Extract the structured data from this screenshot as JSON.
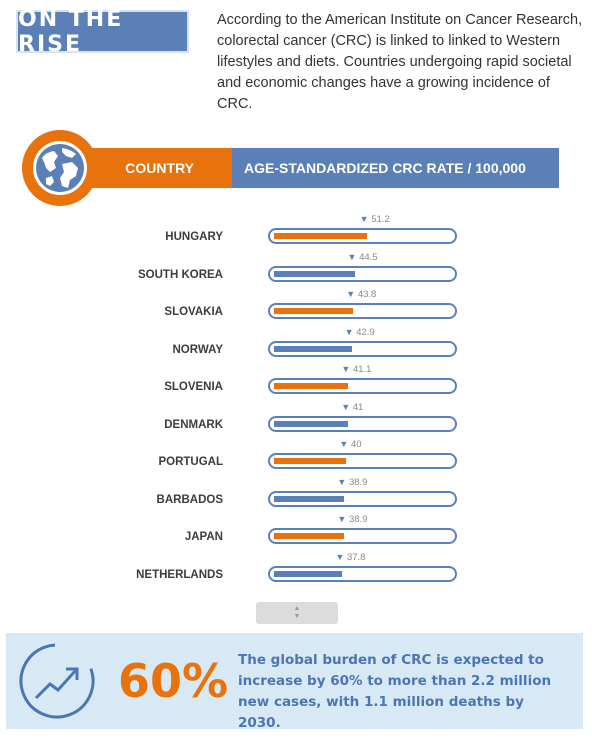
{
  "header": {
    "title": "ON THE RISE",
    "intro": "According to the American Institute on Cancer Research, colorectal cancer (CRC) is linked to linked to Western lifestyles  and diets. Countries undergoing rapid societal and economic changes have a growing incidence of CRC."
  },
  "table_header": {
    "icon": "globe-icon",
    "country_label": "COUNTRY",
    "rate_label": "AGE-STANDARDIZED CRC RATE / 100,000"
  },
  "colors": {
    "orange": "#e8720c",
    "blue": "#5b80b7",
    "footer_bg": "#d8e9f6"
  },
  "chart_data": {
    "type": "bar",
    "orientation": "horizontal",
    "categories": [
      "HUNGARY",
      "SOUTH KOREA",
      "SLOVAKIA",
      "NORWAY",
      "SLOVENIA",
      "DENMARK",
      "PORTUGAL",
      "BARBADOS",
      "JAPAN",
      "NETHERLANDS"
    ],
    "values": [
      51.2,
      44.5,
      43.8,
      42.9,
      41.1,
      41,
      40,
      38.9,
      38.9,
      37.8
    ],
    "value_labels": [
      "51.2",
      "44.5",
      "43.8",
      "42.9",
      "41.1",
      "41",
      "40",
      "38.9",
      "38.9",
      "37.8"
    ],
    "bar_colors": [
      "orange",
      "blue",
      "orange",
      "blue",
      "orange",
      "blue",
      "orange",
      "blue",
      "orange",
      "blue"
    ],
    "xlim": [
      0,
      100
    ],
    "ylabel": "COUNTRY",
    "xlabel": "AGE-STANDARDIZED CRC RATE / 100,000"
  },
  "scroll": {
    "icon": "scroll-arrows-icon"
  },
  "footer": {
    "icon": "trend-up-icon",
    "percent": "60%",
    "text": "The global burden of CRC is expected to increase by 60% to more than 2.2 million new cases, with 1.1 million deaths by 2030."
  }
}
